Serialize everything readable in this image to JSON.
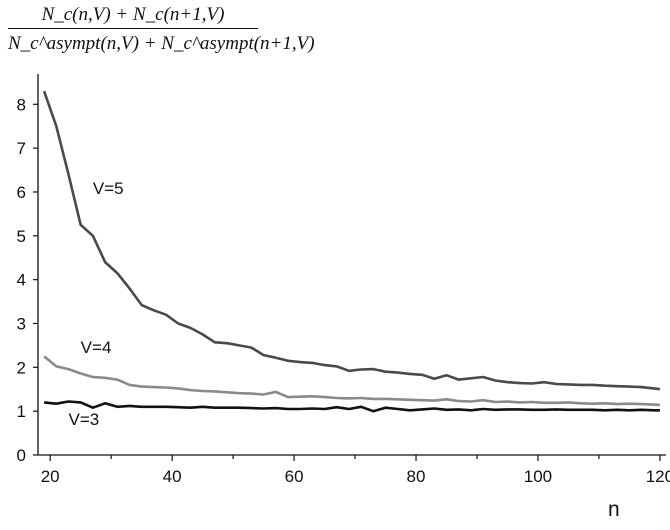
{
  "chart_data": {
    "type": "line",
    "ylabel_numerator": "N_c(n,V) + N_c(n+1,V)",
    "ylabel_denominator": "N_c^asympt(n,V) + N_c^asympt(n+1,V)",
    "xlabel": "n",
    "xlim": [
      18,
      121
    ],
    "ylim": [
      0,
      8.6
    ],
    "xticks": [
      20,
      40,
      60,
      80,
      100,
      120
    ],
    "yticks": [
      0,
      1,
      2,
      3,
      4,
      5,
      6,
      7,
      8
    ],
    "grid": false,
    "legend": "inline labels",
    "series": [
      {
        "name": "V=5",
        "color": "#4a4a4a",
        "x": [
          19,
          21,
          23,
          25,
          27,
          29,
          31,
          33,
          35,
          37,
          39,
          41,
          43,
          45,
          47,
          49,
          51,
          53,
          55,
          57,
          59,
          61,
          63,
          65,
          67,
          69,
          71,
          73,
          75,
          77,
          79,
          81,
          83,
          85,
          87,
          89,
          91,
          93,
          95,
          97,
          99,
          101,
          103,
          105,
          107,
          109,
          111,
          113,
          115,
          117,
          119,
          120
        ],
        "y": [
          8.3,
          7.5,
          6.4,
          5.25,
          5.0,
          4.4,
          4.15,
          3.8,
          3.42,
          3.3,
          3.2,
          3.0,
          2.9,
          2.75,
          2.57,
          2.55,
          2.5,
          2.45,
          2.28,
          2.22,
          2.15,
          2.12,
          2.1,
          2.05,
          2.02,
          1.92,
          1.95,
          1.96,
          1.9,
          1.88,
          1.85,
          1.83,
          1.74,
          1.82,
          1.72,
          1.75,
          1.78,
          1.7,
          1.66,
          1.64,
          1.63,
          1.66,
          1.62,
          1.61,
          1.6,
          1.6,
          1.58,
          1.57,
          1.56,
          1.55,
          1.52,
          1.5
        ]
      },
      {
        "name": "V=4",
        "color": "#8a8a8a",
        "x": [
          19,
          21,
          23,
          25,
          27,
          29,
          31,
          33,
          35,
          37,
          39,
          41,
          43,
          45,
          47,
          49,
          51,
          53,
          55,
          57,
          59,
          61,
          63,
          65,
          67,
          69,
          71,
          73,
          75,
          77,
          79,
          81,
          83,
          85,
          87,
          89,
          91,
          93,
          95,
          97,
          99,
          101,
          103,
          105,
          107,
          109,
          111,
          113,
          115,
          117,
          119,
          120
        ],
        "y": [
          2.25,
          2.02,
          1.96,
          1.86,
          1.78,
          1.76,
          1.72,
          1.6,
          1.56,
          1.55,
          1.54,
          1.52,
          1.48,
          1.46,
          1.45,
          1.43,
          1.41,
          1.4,
          1.38,
          1.44,
          1.32,
          1.33,
          1.34,
          1.32,
          1.3,
          1.29,
          1.3,
          1.28,
          1.28,
          1.27,
          1.26,
          1.25,
          1.24,
          1.27,
          1.23,
          1.22,
          1.25,
          1.21,
          1.22,
          1.2,
          1.21,
          1.19,
          1.19,
          1.2,
          1.18,
          1.17,
          1.18,
          1.16,
          1.17,
          1.16,
          1.15,
          1.14
        ]
      },
      {
        "name": "V=3",
        "color": "#111111",
        "x": [
          19,
          21,
          23,
          25,
          27,
          29,
          31,
          33,
          35,
          37,
          39,
          41,
          43,
          45,
          47,
          49,
          51,
          53,
          55,
          57,
          59,
          61,
          63,
          65,
          67,
          69,
          71,
          73,
          75,
          77,
          79,
          81,
          83,
          85,
          87,
          89,
          91,
          93,
          95,
          97,
          99,
          101,
          103,
          105,
          107,
          109,
          111,
          113,
          115,
          117,
          119,
          120
        ],
        "y": [
          1.2,
          1.17,
          1.22,
          1.2,
          1.08,
          1.18,
          1.1,
          1.12,
          1.1,
          1.1,
          1.1,
          1.09,
          1.08,
          1.1,
          1.08,
          1.08,
          1.08,
          1.07,
          1.06,
          1.07,
          1.05,
          1.05,
          1.06,
          1.05,
          1.09,
          1.05,
          1.1,
          1.0,
          1.08,
          1.05,
          1.02,
          1.04,
          1.06,
          1.03,
          1.04,
          1.02,
          1.05,
          1.03,
          1.04,
          1.04,
          1.03,
          1.03,
          1.04,
          1.03,
          1.03,
          1.03,
          1.02,
          1.03,
          1.02,
          1.03,
          1.02,
          1.02
        ]
      }
    ],
    "annotations": [
      {
        "text": "V=5",
        "x": 27,
        "y": 5.95
      },
      {
        "text": "V=4",
        "x": 25,
        "y": 2.33
      },
      {
        "text": "V=3",
        "x": 23,
        "y": 0.68
      }
    ]
  }
}
